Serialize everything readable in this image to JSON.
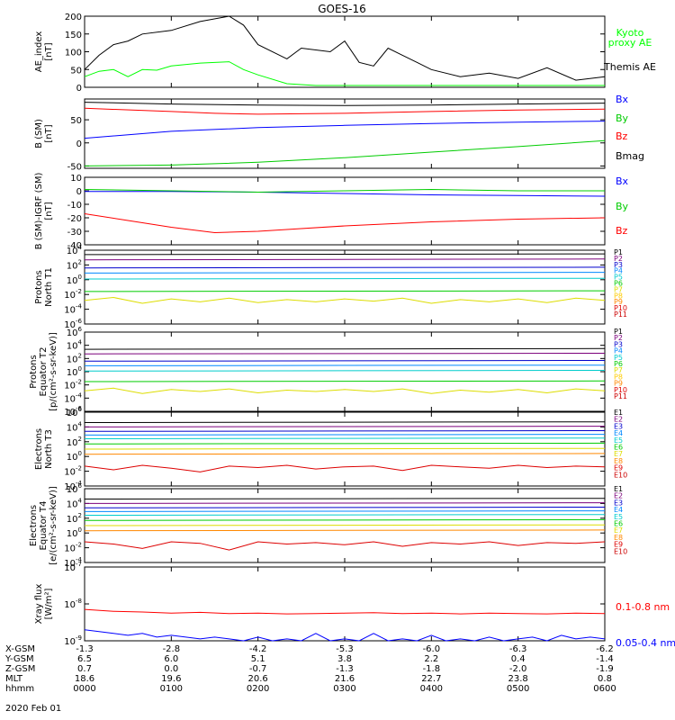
{
  "figure": {
    "title": "GOES-16",
    "date_label": "2020 Feb 01"
  },
  "chart_data": [
    {
      "type": "line",
      "panel": "ae",
      "ylabel": "AE_index\n[nT]",
      "ylim": [
        0,
        200
      ],
      "yticks": [
        0,
        50,
        100,
        150,
        200
      ],
      "series": [
        {
          "name": "Kyoto\nproxy AE",
          "color": "#00ff00",
          "x": [
            0,
            10,
            20,
            30,
            40,
            50,
            60,
            80,
            100,
            110,
            120,
            140,
            160,
            180,
            200,
            220,
            240,
            260,
            300,
            360
          ],
          "y": [
            30,
            45,
            50,
            30,
            50,
            48,
            60,
            68,
            72,
            50,
            35,
            10,
            5,
            5,
            5,
            5,
            5,
            5,
            5,
            5
          ]
        },
        {
          "name": "Themis AE",
          "color": "#000000",
          "x": [
            0,
            10,
            20,
            30,
            40,
            60,
            80,
            100,
            110,
            120,
            140,
            150,
            170,
            180,
            190,
            200,
            210,
            220,
            230,
            240,
            260,
            280,
            300,
            320,
            340,
            360
          ],
          "y": [
            50,
            90,
            120,
            130,
            150,
            160,
            185,
            200,
            175,
            120,
            80,
            110,
            100,
            130,
            70,
            60,
            110,
            90,
            70,
            50,
            30,
            40,
            25,
            55,
            20,
            30
          ]
        }
      ]
    },
    {
      "type": "line",
      "panel": "bsm",
      "ylabel": "B (SM)\n[nT]",
      "ylim": [
        -55,
        95
      ],
      "yticks": [
        -50,
        0,
        50
      ],
      "series": [
        {
          "name": "Bx",
          "color": "#0000ff",
          "x": [
            0,
            60,
            120,
            180,
            240,
            300,
            360
          ],
          "y": [
            10,
            25,
            33,
            38,
            42,
            45,
            47
          ]
        },
        {
          "name": "By",
          "color": "#00cc00",
          "x": [
            0,
            60,
            120,
            180,
            240,
            300,
            360
          ],
          "y": [
            -50,
            -48,
            -42,
            -32,
            -20,
            -8,
            5
          ]
        },
        {
          "name": "Bz",
          "color": "#ff0000",
          "x": [
            0,
            60,
            90,
            120,
            180,
            240,
            300,
            360
          ],
          "y": [
            75,
            68,
            64,
            62,
            64,
            68,
            71,
            73
          ]
        },
        {
          "name": "Bmag",
          "color": "#000000",
          "x": [
            0,
            60,
            120,
            180,
            240,
            300,
            360
          ],
          "y": [
            88,
            84,
            82,
            81,
            82,
            84,
            86
          ]
        }
      ]
    },
    {
      "type": "line",
      "panel": "bigrf",
      "ylabel": "B (SM)-IGRF (SM)\n[nT]",
      "ylim": [
        -40,
        10
      ],
      "yticks": [
        -40,
        -30,
        -20,
        -10,
        0,
        10
      ],
      "series": [
        {
          "name": "Bx",
          "color": "#0000ff",
          "x": [
            0,
            60,
            120,
            180,
            240,
            300,
            360
          ],
          "y": [
            -0.5,
            -0.5,
            -1,
            -2,
            -3,
            -3.5,
            -4
          ]
        },
        {
          "name": "By",
          "color": "#00cc00",
          "x": [
            0,
            60,
            120,
            180,
            240,
            300,
            360
          ],
          "y": [
            1,
            0,
            -1,
            0,
            1,
            0,
            0
          ]
        },
        {
          "name": "Bz",
          "color": "#ff0000",
          "x": [
            0,
            30,
            60,
            90,
            120,
            180,
            240,
            300,
            360
          ],
          "y": [
            -17,
            -22,
            -27,
            -31,
            -30,
            -26,
            -23,
            -21,
            -20
          ]
        }
      ]
    },
    {
      "type": "line",
      "panel": "pn",
      "ylabel": "Protons\nNorth T1",
      "log": true,
      "ylim": [
        -6,
        4
      ],
      "ytick_exps": [
        -6,
        -4,
        -2,
        0,
        2,
        4
      ],
      "series": [
        {
          "name": "P1",
          "color": "#000000",
          "x": [
            0,
            360
          ],
          "y": [
            3.4,
            3.5
          ]
        },
        {
          "name": "P2",
          "color": "#7b007b",
          "x": [
            0,
            360
          ],
          "y": [
            2.7,
            2.8
          ]
        },
        {
          "name": "P3",
          "color": "#0000cc",
          "x": [
            0,
            360
          ],
          "y": [
            1.6,
            1.7
          ]
        },
        {
          "name": "P4",
          "color": "#0088ff",
          "x": [
            0,
            360
          ],
          "y": [
            0.9,
            1.0
          ]
        },
        {
          "name": "P5",
          "color": "#00cccc",
          "x": [
            0,
            360
          ],
          "y": [
            0.1,
            0.2
          ]
        },
        {
          "name": "P6",
          "color": "#00cc00",
          "x": [
            0,
            360
          ],
          "y": [
            -1.6,
            -1.5
          ]
        },
        {
          "name": "P7",
          "color": "#dddd00",
          "x": [
            0,
            20,
            40,
            60,
            80,
            100,
            120,
            140,
            160,
            180,
            200,
            220,
            240,
            260,
            280,
            300,
            320,
            340,
            360
          ],
          "y": [
            -2.8,
            -2.4,
            -3.2,
            -2.6,
            -3,
            -2.5,
            -3.1,
            -2.7,
            -3,
            -2.6,
            -2.9,
            -2.5,
            -3.2,
            -2.7,
            -3,
            -2.6,
            -3.1,
            -2.5,
            -2.8
          ]
        },
        {
          "name": "P8",
          "color": "#ffcc00",
          "x": [],
          "y": []
        },
        {
          "name": "P9",
          "color": "#ff8800",
          "x": [],
          "y": []
        },
        {
          "name": "P10",
          "color": "#dd0000",
          "x": [],
          "y": []
        },
        {
          "name": "P11",
          "color": "#cc0000",
          "x": [],
          "y": []
        }
      ]
    },
    {
      "type": "line",
      "panel": "pe",
      "ylabel": "Protons\nEquator T2\n[p/(cm²-s-sr-keV)]",
      "log": true,
      "ylim": [
        -6,
        6
      ],
      "ytick_exps": [
        -6,
        -4,
        -2,
        0,
        2,
        4,
        6
      ],
      "series": [
        {
          "name": "P1",
          "color": "#000000",
          "x": [
            0,
            360
          ],
          "y": [
            3.4,
            3.5
          ]
        },
        {
          "name": "P2",
          "color": "#7b007b",
          "x": [
            0,
            360
          ],
          "y": [
            2.7,
            2.8
          ]
        },
        {
          "name": "P3",
          "color": "#0000cc",
          "x": [
            0,
            360
          ],
          "y": [
            1.6,
            1.7
          ]
        },
        {
          "name": "P4",
          "color": "#0088ff",
          "x": [
            0,
            360
          ],
          "y": [
            0.9,
            1.0
          ]
        },
        {
          "name": "P5",
          "color": "#00cccc",
          "x": [
            0,
            360
          ],
          "y": [
            0.1,
            0.2
          ]
        },
        {
          "name": "P6",
          "color": "#00cc00",
          "x": [
            0,
            360
          ],
          "y": [
            -1.5,
            -1.4
          ]
        },
        {
          "name": "P7",
          "color": "#dddd00",
          "x": [
            0,
            20,
            40,
            60,
            80,
            100,
            120,
            140,
            160,
            180,
            200,
            220,
            240,
            260,
            280,
            300,
            320,
            340,
            360
          ],
          "y": [
            -2.9,
            -2.5,
            -3.3,
            -2.7,
            -3,
            -2.6,
            -3.2,
            -2.8,
            -3,
            -2.7,
            -3,
            -2.6,
            -3.3,
            -2.8,
            -3.1,
            -2.7,
            -3.2,
            -2.6,
            -2.9
          ]
        },
        {
          "name": "P8",
          "color": "#ffcc00",
          "x": [],
          "y": []
        },
        {
          "name": "P9",
          "color": "#ff8800",
          "x": [],
          "y": []
        },
        {
          "name": "P10",
          "color": "#dd0000",
          "x": [],
          "y": []
        },
        {
          "name": "P11",
          "color": "#cc0000",
          "x": [],
          "y": []
        }
      ]
    },
    {
      "type": "line",
      "panel": "en",
      "ylabel": "Electrons\nNorth T3",
      "log": true,
      "ylim": [
        -4,
        6
      ],
      "ytick_exps": [
        -4,
        -2,
        0,
        2,
        4,
        6
      ],
      "series": [
        {
          "name": "E1",
          "color": "#000000",
          "x": [
            0,
            360
          ],
          "y": [
            4.6,
            4.7
          ]
        },
        {
          "name": "E2",
          "color": "#7b007b",
          "x": [
            0,
            360
          ],
          "y": [
            4.0,
            4.1
          ]
        },
        {
          "name": "E3",
          "color": "#0000cc",
          "x": [
            0,
            360
          ],
          "y": [
            3.4,
            3.5
          ]
        },
        {
          "name": "E4",
          "color": "#0088ff",
          "x": [
            0,
            360
          ],
          "y": [
            2.9,
            3.0
          ]
        },
        {
          "name": "E5",
          "color": "#00cccc",
          "x": [
            0,
            360
          ],
          "y": [
            2.4,
            2.5
          ]
        },
        {
          "name": "E6",
          "color": "#00cc00",
          "x": [
            0,
            360
          ],
          "y": [
            1.7,
            1.8
          ]
        },
        {
          "name": "E7",
          "color": "#dddd00",
          "x": [
            0,
            360
          ],
          "y": [
            1.0,
            1.1
          ]
        },
        {
          "name": "E8",
          "color": "#ff8800",
          "x": [
            0,
            360
          ],
          "y": [
            0.3,
            0.4
          ]
        },
        {
          "name": "E9",
          "color": "#dd0000",
          "x": [
            0,
            20,
            40,
            60,
            80,
            100,
            120,
            140,
            160,
            180,
            200,
            220,
            240,
            260,
            280,
            300,
            320,
            340,
            360
          ],
          "y": [
            -1.3,
            -1.8,
            -1.2,
            -1.6,
            -2.1,
            -1.3,
            -1.5,
            -1.2,
            -1.7,
            -1.4,
            -1.3,
            -1.9,
            -1.2,
            -1.4,
            -1.6,
            -1.2,
            -1.5,
            -1.3,
            -1.4
          ]
        },
        {
          "name": "E10",
          "color": "#cc0000",
          "x": [],
          "y": []
        }
      ]
    },
    {
      "type": "line",
      "panel": "ee",
      "ylabel": "Electrons\nEquator T4\n[e/(cm²-s-sr-keV)]",
      "log": true,
      "ylim": [
        -4,
        6
      ],
      "ytick_exps": [
        -4,
        -2,
        0,
        2,
        4,
        6
      ],
      "series": [
        {
          "name": "E1",
          "color": "#000000",
          "x": [
            0,
            360
          ],
          "y": [
            4.6,
            4.7
          ]
        },
        {
          "name": "E2",
          "color": "#7b007b",
          "x": [
            0,
            360
          ],
          "y": [
            4.0,
            4.1
          ]
        },
        {
          "name": "E3",
          "color": "#0000cc",
          "x": [
            0,
            360
          ],
          "y": [
            3.4,
            3.5
          ]
        },
        {
          "name": "E4",
          "color": "#0088ff",
          "x": [
            0,
            360
          ],
          "y": [
            2.9,
            3.0
          ]
        },
        {
          "name": "E5",
          "color": "#00cccc",
          "x": [
            0,
            360
          ],
          "y": [
            2.4,
            2.5
          ]
        },
        {
          "name": "E6",
          "color": "#00cc00",
          "x": [
            0,
            360
          ],
          "y": [
            1.7,
            1.8
          ]
        },
        {
          "name": "E7",
          "color": "#dddd00",
          "x": [
            0,
            360
          ],
          "y": [
            1.0,
            1.1
          ]
        },
        {
          "name": "E8",
          "color": "#ff8800",
          "x": [
            0,
            360
          ],
          "y": [
            0.3,
            0.4
          ]
        },
        {
          "name": "E9",
          "color": "#dd0000",
          "x": [
            0,
            20,
            40,
            60,
            80,
            100,
            120,
            140,
            160,
            180,
            200,
            220,
            240,
            260,
            280,
            300,
            320,
            340,
            360
          ],
          "y": [
            -1.2,
            -1.5,
            -2.1,
            -1.2,
            -1.4,
            -2.3,
            -1.2,
            -1.5,
            -1.3,
            -1.6,
            -1.2,
            -1.8,
            -1.3,
            -1.5,
            -1.2,
            -1.7,
            -1.3,
            -1.4,
            -1.2
          ]
        },
        {
          "name": "E10",
          "color": "#cc0000",
          "x": [],
          "y": []
        }
      ]
    },
    {
      "type": "line",
      "panel": "xray",
      "ylabel": "Xray flux\n[W/m²]",
      "log": true,
      "ylim": [
        -9,
        -7
      ],
      "ytick_exps": [
        -9,
        -8,
        -7
      ],
      "series": [
        {
          "name": "0.1-0.8 nm",
          "color": "#ff0000",
          "x": [
            0,
            20,
            40,
            60,
            80,
            100,
            120,
            140,
            160,
            180,
            200,
            220,
            240,
            260,
            280,
            300,
            320,
            340,
            360
          ],
          "y": [
            -8.15,
            -8.2,
            -8.22,
            -8.25,
            -8.23,
            -8.26,
            -8.25,
            -8.27,
            -8.26,
            -8.25,
            -8.24,
            -8.26,
            -8.25,
            -8.27,
            -8.25,
            -8.26,
            -8.27,
            -8.25,
            -8.26
          ]
        },
        {
          "name": "0.05-0.4 nm",
          "color": "#0000ff",
          "x": [
            0,
            10,
            20,
            30,
            40,
            50,
            60,
            70,
            80,
            90,
            100,
            110,
            120,
            130,
            140,
            150,
            160,
            170,
            180,
            190,
            200,
            210,
            220,
            230,
            240,
            250,
            260,
            270,
            280,
            290,
            300,
            310,
            320,
            330,
            340,
            350,
            360
          ],
          "y": [
            -8.7,
            -8.75,
            -8.8,
            -8.85,
            -8.8,
            -8.9,
            -8.85,
            -8.9,
            -8.95,
            -8.9,
            -8.95,
            -9.0,
            -8.9,
            -9.0,
            -8.95,
            -9.0,
            -8.8,
            -9.0,
            -8.95,
            -9.0,
            -8.8,
            -9.0,
            -8.95,
            -9.0,
            -8.85,
            -9.0,
            -8.95,
            -9.0,
            -8.9,
            -9.0,
            -8.95,
            -8.9,
            -9.0,
            -8.85,
            -8.95,
            -8.9,
            -8.95
          ]
        }
      ]
    }
  ],
  "ephemeris": {
    "rows": [
      {
        "label": "X-GSM",
        "values": [
          "-1.3",
          "-2.8",
          "-4.2",
          "-5.3",
          "-6.0",
          "-6.3",
          "-6.2"
        ]
      },
      {
        "label": "Y-GSM",
        "values": [
          "6.5",
          "6.0",
          "5.1",
          "3.8",
          "2.2",
          "0.4",
          "-1.4"
        ]
      },
      {
        "label": "Z-GSM",
        "values": [
          "0.7",
          "0.0",
          "-0.7",
          "-1.3",
          "-1.8",
          "-2.0",
          "-1.9"
        ]
      },
      {
        "label": "MLT",
        "values": [
          "18.6",
          "19.6",
          "20.6",
          "21.6",
          "22.7",
          "23.8",
          "0.8"
        ]
      },
      {
        "label": "hhmm",
        "values": [
          "0000",
          "0100",
          "0200",
          "0300",
          "0400",
          "0500",
          "0600"
        ]
      }
    ]
  },
  "colors": {
    "axis": "#000000"
  }
}
